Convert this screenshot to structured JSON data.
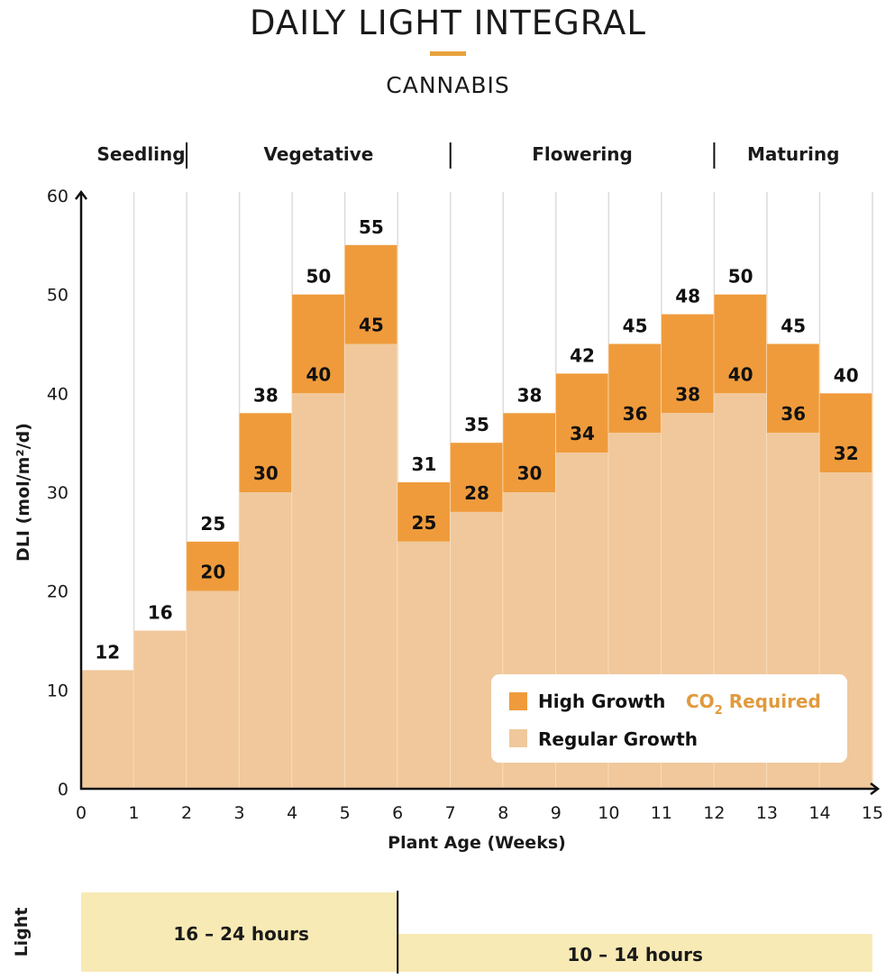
{
  "chart_data": {
    "type": "bar",
    "title": "DAILY LIGHT INTEGRAL",
    "subtitle": "CANNABIS",
    "xlabel": "Plant Age (Weeks)",
    "ylabel": "DLI (mol/m²/d)",
    "xlim": [
      0,
      15
    ],
    "ylim": [
      0,
      60
    ],
    "x_ticks": [
      "0",
      "1",
      "2",
      "3",
      "4",
      "5",
      "6",
      "7",
      "8",
      "9",
      "10",
      "11",
      "12",
      "13",
      "14",
      "15"
    ],
    "y_ticks": [
      "0",
      "10",
      "20",
      "30",
      "40",
      "50",
      "60"
    ],
    "categories": [
      "0-1",
      "1-2",
      "2-3",
      "3-4",
      "4-5",
      "5-6",
      "6-7",
      "7-8",
      "8-9",
      "9-10",
      "10-11",
      "11-12",
      "12-13",
      "13-14",
      "14-15"
    ],
    "series": [
      {
        "name": "Regular Growth",
        "color": "#f0c89b",
        "values": [
          12,
          16,
          20,
          30,
          40,
          45,
          25,
          28,
          30,
          34,
          36,
          38,
          40,
          36,
          32
        ]
      },
      {
        "name": "High Growth",
        "color": "#ef9b3c",
        "values": [
          12,
          16,
          25,
          38,
          50,
          55,
          31,
          35,
          38,
          42,
          45,
          48,
          50,
          45,
          40
        ]
      }
    ],
    "inner_labels": [
      "",
      "",
      "20",
      "30",
      "40",
      "45",
      "25",
      "28",
      "30",
      "34",
      "36",
      "38",
      "40",
      "36",
      "32"
    ],
    "top_labels": [
      "12",
      "16",
      "25",
      "38",
      "50",
      "55",
      "31",
      "35",
      "38",
      "42",
      "45",
      "48",
      "50",
      "45",
      "40"
    ],
    "phases": [
      {
        "label": "Seedling",
        "start": 0,
        "end": 2
      },
      {
        "label": "Vegetative",
        "start": 2,
        "end": 7
      },
      {
        "label": "Flowering",
        "start": 7,
        "end": 12
      },
      {
        "label": "Maturing",
        "start": 12,
        "end": 15
      }
    ],
    "legend": {
      "position": "bottom-right",
      "high_label": "High Growth",
      "co2_label_prefix": "CO",
      "co2_label_sub": "2",
      "co2_label_suffix": " Required",
      "regular_label": "Regular Growth"
    },
    "light": {
      "label": "Light",
      "bands": [
        {
          "label": "16 – 24 hours",
          "start": 0,
          "end": 6
        },
        {
          "label": "10 – 14 hours",
          "start": 6,
          "end": 15
        }
      ]
    },
    "grid": true
  },
  "colors": {
    "accent": "#e8a23c",
    "high": "#ef9b3c",
    "regular": "#f0c89b",
    "light_band": "#f8eab5",
    "co2_text": "#e09a3e",
    "gridline": "#dcdcdc"
  }
}
